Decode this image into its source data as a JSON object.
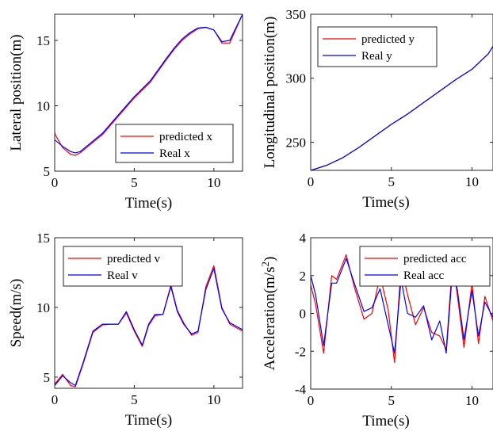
{
  "colors": {
    "predicted": "#ff0000",
    "real": "#0000ff",
    "axis": "#262626"
  },
  "chart_data": [
    {
      "type": "line",
      "xlabel": "Time(s)",
      "ylabel": "Lateral position(m)",
      "xlim": [
        0,
        11.8
      ],
      "ylim": [
        5,
        17
      ],
      "xticks": [
        0,
        5,
        10
      ],
      "yticks": [
        5,
        10,
        15
      ],
      "legend_position": "lower-right",
      "series": [
        {
          "name": "predicted x",
          "color": "#ff0000",
          "x": [
            0,
            0.03,
            0.5,
            1.0,
            1.3,
            1.6,
            2.0,
            3.0,
            4.0,
            5.0,
            6.0,
            7.0,
            7.5,
            8.0,
            8.5,
            9.0,
            9.5,
            10.0,
            10.5,
            11.0,
            11.8
          ],
          "y": [
            8.0,
            7.8,
            6.8,
            6.3,
            6.2,
            6.4,
            6.8,
            7.8,
            9.2,
            10.6,
            11.8,
            13.5,
            14.3,
            15.0,
            15.5,
            15.9,
            16.0,
            15.8,
            14.8,
            14.8,
            17.0
          ]
        },
        {
          "name": "Real x",
          "color": "#0000ff",
          "x": [
            0,
            0.5,
            1.0,
            1.3,
            1.6,
            2.0,
            3.0,
            4.0,
            5.0,
            6.0,
            7.0,
            7.5,
            8.0,
            8.5,
            9.0,
            9.5,
            10.0,
            10.5,
            11.0,
            11.8
          ],
          "y": [
            7.4,
            6.9,
            6.5,
            6.4,
            6.5,
            6.9,
            7.9,
            9.3,
            10.7,
            11.9,
            13.6,
            14.4,
            15.1,
            15.6,
            15.95,
            16.0,
            15.8,
            14.9,
            15.0,
            17.0
          ]
        }
      ]
    },
    {
      "type": "line",
      "xlabel": "Time(s)",
      "ylabel": "Longitudinal position(m)",
      "xlim": [
        0,
        11.3
      ],
      "ylim": [
        228,
        350
      ],
      "xticks": [
        0,
        5,
        10
      ],
      "yticks": [
        250,
        300,
        350
      ],
      "legend_position": "top-left",
      "series": [
        {
          "name": "predicted y",
          "color": "#ff0000",
          "x": [
            0,
            1,
            2,
            3,
            4,
            5,
            6,
            7,
            8,
            9,
            10,
            11,
            11.3
          ],
          "y": [
            228,
            232,
            238,
            246,
            255,
            264,
            272,
            281,
            290,
            299,
            307,
            319,
            325
          ]
        },
        {
          "name": "Real y",
          "color": "#0000ff",
          "x": [
            0,
            1,
            2,
            3,
            4,
            5,
            6,
            7,
            8,
            9,
            10,
            11,
            11.3
          ],
          "y": [
            228,
            232,
            238,
            246,
            255,
            264,
            272,
            281,
            290,
            299,
            307,
            319,
            325
          ]
        }
      ]
    },
    {
      "type": "line",
      "xlabel": "Time(s)",
      "ylabel": "Speed(m/s)",
      "xlim": [
        0,
        11.8
      ],
      "ylim": [
        4.2,
        15
      ],
      "xticks": [
        0,
        5,
        10
      ],
      "yticks": [
        5,
        10,
        15
      ],
      "legend_position": "top-left",
      "series": [
        {
          "name": "predicted v",
          "color": "#ff0000",
          "x": [
            0,
            0.5,
            1.0,
            1.3,
            1.8,
            2.4,
            3.0,
            3.5,
            4.0,
            4.5,
            5.0,
            5.5,
            5.9,
            6.3,
            6.8,
            7.3,
            7.7,
            8.1,
            8.6,
            9.0,
            9.5,
            10.0,
            10.5,
            11.0,
            11.8
          ],
          "y": [
            4.5,
            5.2,
            4.4,
            4.3,
            6.0,
            8.2,
            8.75,
            8.8,
            8.8,
            9.6,
            8.3,
            7.2,
            8.7,
            9.4,
            9.5,
            11.6,
            9.8,
            8.9,
            8.0,
            8.2,
            11.5,
            13.0,
            10.0,
            8.8,
            8.3
          ]
        },
        {
          "name": "Real v",
          "color": "#0000ff",
          "x": [
            0,
            0.5,
            1.0,
            1.3,
            1.8,
            2.4,
            3.0,
            3.5,
            4.0,
            4.5,
            5.0,
            5.5,
            5.9,
            6.3,
            6.8,
            7.3,
            7.7,
            8.1,
            8.6,
            9.0,
            9.5,
            10.0,
            10.5,
            11.0,
            11.8
          ],
          "y": [
            4.4,
            5.1,
            4.6,
            4.4,
            6.1,
            8.3,
            8.8,
            8.8,
            8.8,
            9.7,
            8.4,
            7.3,
            8.8,
            9.5,
            9.5,
            11.5,
            9.7,
            8.8,
            8.1,
            8.3,
            11.3,
            12.8,
            9.9,
            8.9,
            8.4
          ]
        }
      ]
    },
    {
      "type": "line",
      "xlabel": "Time(s)",
      "ylabel_main": "Acceleration(m/s",
      "ylabel_sup": "2",
      "ylabel_end": ")",
      "xlim": [
        0,
        11.3
      ],
      "ylim": [
        -4,
        4
      ],
      "xticks": [
        0,
        5,
        10
      ],
      "yticks": [
        -4,
        -2,
        0,
        2,
        4
      ],
      "legend_position": "top-right",
      "series": [
        {
          "name": "predicted acc",
          "color": "#ff0000",
          "x": [
            0,
            0.3,
            0.8,
            1.3,
            1.6,
            2.2,
            2.7,
            3.3,
            3.8,
            4.3,
            4.8,
            5.2,
            5.6,
            6.0,
            6.5,
            7.0,
            7.5,
            8.0,
            8.4,
            8.8,
            9.1,
            9.5,
            10.0,
            10.4,
            10.8,
            11.3
          ],
          "y": [
            1.5,
            0.5,
            -2.1,
            2.0,
            1.8,
            3.1,
            1.4,
            -0.3,
            0.0,
            2.0,
            0.2,
            -2.6,
            2.5,
            1.0,
            -0.6,
            0.3,
            -1.0,
            -1.2,
            -1.9,
            2.8,
            0.9,
            -1.8,
            1.6,
            -1.6,
            0.9,
            -0.4
          ]
        },
        {
          "name": "Real acc",
          "color": "#0000ff",
          "x": [
            0,
            0.3,
            0.8,
            1.3,
            1.6,
            2.2,
            2.7,
            3.3,
            3.8,
            4.3,
            4.8,
            5.2,
            5.6,
            6.0,
            6.5,
            7.0,
            7.5,
            8.0,
            8.4,
            8.8,
            9.1,
            9.5,
            10.0,
            10.4,
            10.8,
            11.3
          ],
          "y": [
            2.0,
            1.0,
            -1.7,
            1.6,
            1.6,
            2.9,
            1.6,
            0.1,
            0.3,
            1.3,
            -0.6,
            -2.1,
            1.8,
            0.0,
            -0.2,
            0.4,
            -1.4,
            -0.4,
            -2.1,
            2.4,
            1.2,
            -1.4,
            1.2,
            -1.2,
            0.6,
            -0.2
          ]
        }
      ]
    }
  ]
}
